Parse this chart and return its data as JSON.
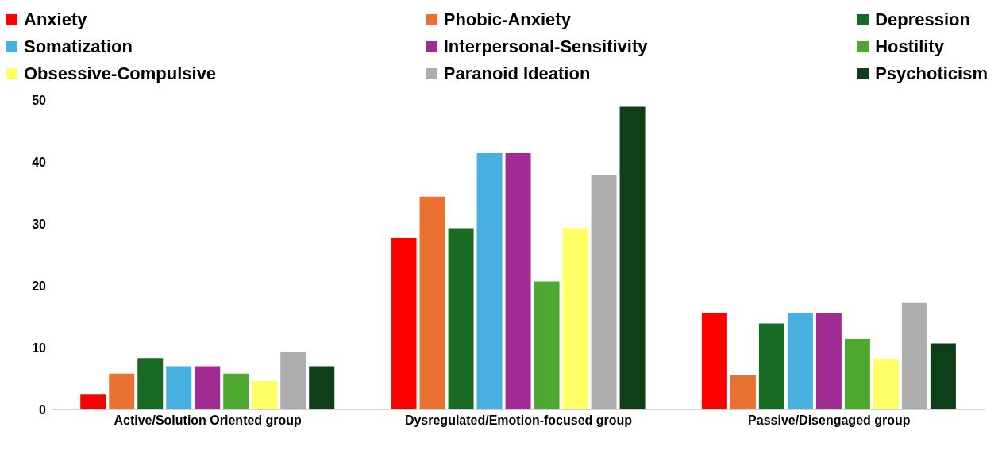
{
  "chart_data": {
    "type": "bar",
    "categories": [
      "Active/Solution Oriented group",
      "Dysregulated/Emotion-focused group",
      "Passive/Disengaged group"
    ],
    "series": [
      {
        "name": "Anxiety",
        "color": "#ff0000",
        "values": [
          2.4,
          27.7,
          15.6
        ]
      },
      {
        "name": "Phobic-Anxiety",
        "color": "#e97132",
        "values": [
          5.8,
          34.4,
          5.5
        ]
      },
      {
        "name": "Depression",
        "color": "#196b24",
        "values": [
          8.3,
          29.3,
          13.9
        ]
      },
      {
        "name": "Somatization",
        "color": "#47b0e0",
        "values": [
          7.0,
          41.4,
          15.6
        ]
      },
      {
        "name": "Interpersonal-Sensitivity",
        "color": "#a02b93",
        "values": [
          7.0,
          41.4,
          15.6
        ]
      },
      {
        "name": "Hostility",
        "color": "#4ea72e",
        "values": [
          5.8,
          20.7,
          11.4
        ]
      },
      {
        "name": "Obsessive-Compulsive",
        "color": "#ffff66",
        "values": [
          4.6,
          29.3,
          8.2
        ]
      },
      {
        "name": "Paranoid Ideation",
        "color": "#adadad",
        "values": [
          9.3,
          37.9,
          17.2
        ]
      },
      {
        "name": "Psychoticism",
        "color": "#0f3f19",
        "values": [
          7.0,
          48.9,
          10.7
        ]
      }
    ],
    "ylim": [
      0,
      50
    ],
    "yticks": [
      0,
      10,
      20,
      30,
      40,
      50
    ],
    "grid": false,
    "legend": "top"
  }
}
